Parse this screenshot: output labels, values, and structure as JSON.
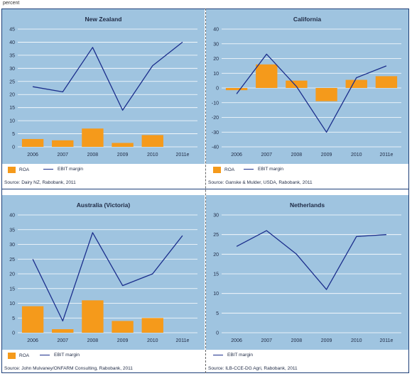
{
  "unit_label": "percent",
  "legend": {
    "roa": "ROA",
    "ebit": "EBIT margin"
  },
  "colors": {
    "bar": "#f59a1b",
    "line": "#1b2e8c",
    "plot_bg": "#9fc4e0",
    "grid": "#ffffff"
  },
  "chart_data": [
    {
      "type": "bar+line",
      "title": "New Zealand",
      "categories": [
        "2006",
        "2007",
        "2008",
        "2009",
        "2010",
        "2011e"
      ],
      "series": [
        {
          "name": "ROA",
          "type": "bar",
          "values": [
            3,
            2.5,
            7,
            1.5,
            4.5,
            null
          ]
        },
        {
          "name": "EBIT margin",
          "type": "line",
          "values": [
            23,
            21,
            38,
            14,
            31,
            40
          ]
        }
      ],
      "ylim": [
        0,
        45
      ],
      "yticks": [
        0,
        5,
        10,
        15,
        20,
        25,
        30,
        35,
        40,
        45
      ],
      "grid": true,
      "source": "Source: Dairy NZ, Rabobank, 2011"
    },
    {
      "type": "bar+line",
      "title": "California",
      "categories": [
        "2006",
        "2007",
        "2008",
        "2009",
        "2010",
        "2011e"
      ],
      "series": [
        {
          "name": "ROA",
          "type": "bar",
          "values": [
            -1.5,
            16,
            5,
            -9,
            5.5,
            8
          ]
        },
        {
          "name": "EBIT margin",
          "type": "line",
          "values": [
            -4,
            23,
            1,
            -30,
            7,
            15
          ]
        }
      ],
      "ylim": [
        -40,
        40
      ],
      "yticks": [
        -40,
        -30,
        -20,
        -10,
        0,
        10,
        20,
        30,
        40
      ],
      "grid": true,
      "source": "Source: Ganske & Mulder, USDA, Rabobank, 2011"
    },
    {
      "type": "bar+line",
      "title": "Australia (Victoria)",
      "categories": [
        "2006",
        "2007",
        "2008",
        "2009",
        "2010",
        "2011e"
      ],
      "series": [
        {
          "name": "ROA",
          "type": "bar",
          "values": [
            9,
            1.2,
            11,
            4,
            5,
            null
          ]
        },
        {
          "name": "EBIT margin",
          "type": "line",
          "values": [
            25,
            4,
            34,
            16,
            20,
            33
          ]
        }
      ],
      "ylim": [
        0,
        40
      ],
      "yticks": [
        0,
        5,
        10,
        15,
        20,
        25,
        30,
        35,
        40
      ],
      "grid": true,
      "source": "Source: John Mulvaney/ONFARM Consulting, Rabobank, 2011"
    },
    {
      "type": "line",
      "title": "Netherlands",
      "categories": [
        "2006",
        "2007",
        "2008",
        "2009",
        "2010",
        "2011e"
      ],
      "series": [
        {
          "name": "EBIT margin",
          "type": "line",
          "values": [
            22,
            26,
            20,
            11,
            24.5,
            25
          ]
        }
      ],
      "ylim": [
        0,
        30
      ],
      "yticks": [
        0,
        5,
        10,
        15,
        20,
        25,
        30
      ],
      "grid": true,
      "source": "Source: ILB-CCE-DG Agri, Rabobank, 2011"
    }
  ]
}
